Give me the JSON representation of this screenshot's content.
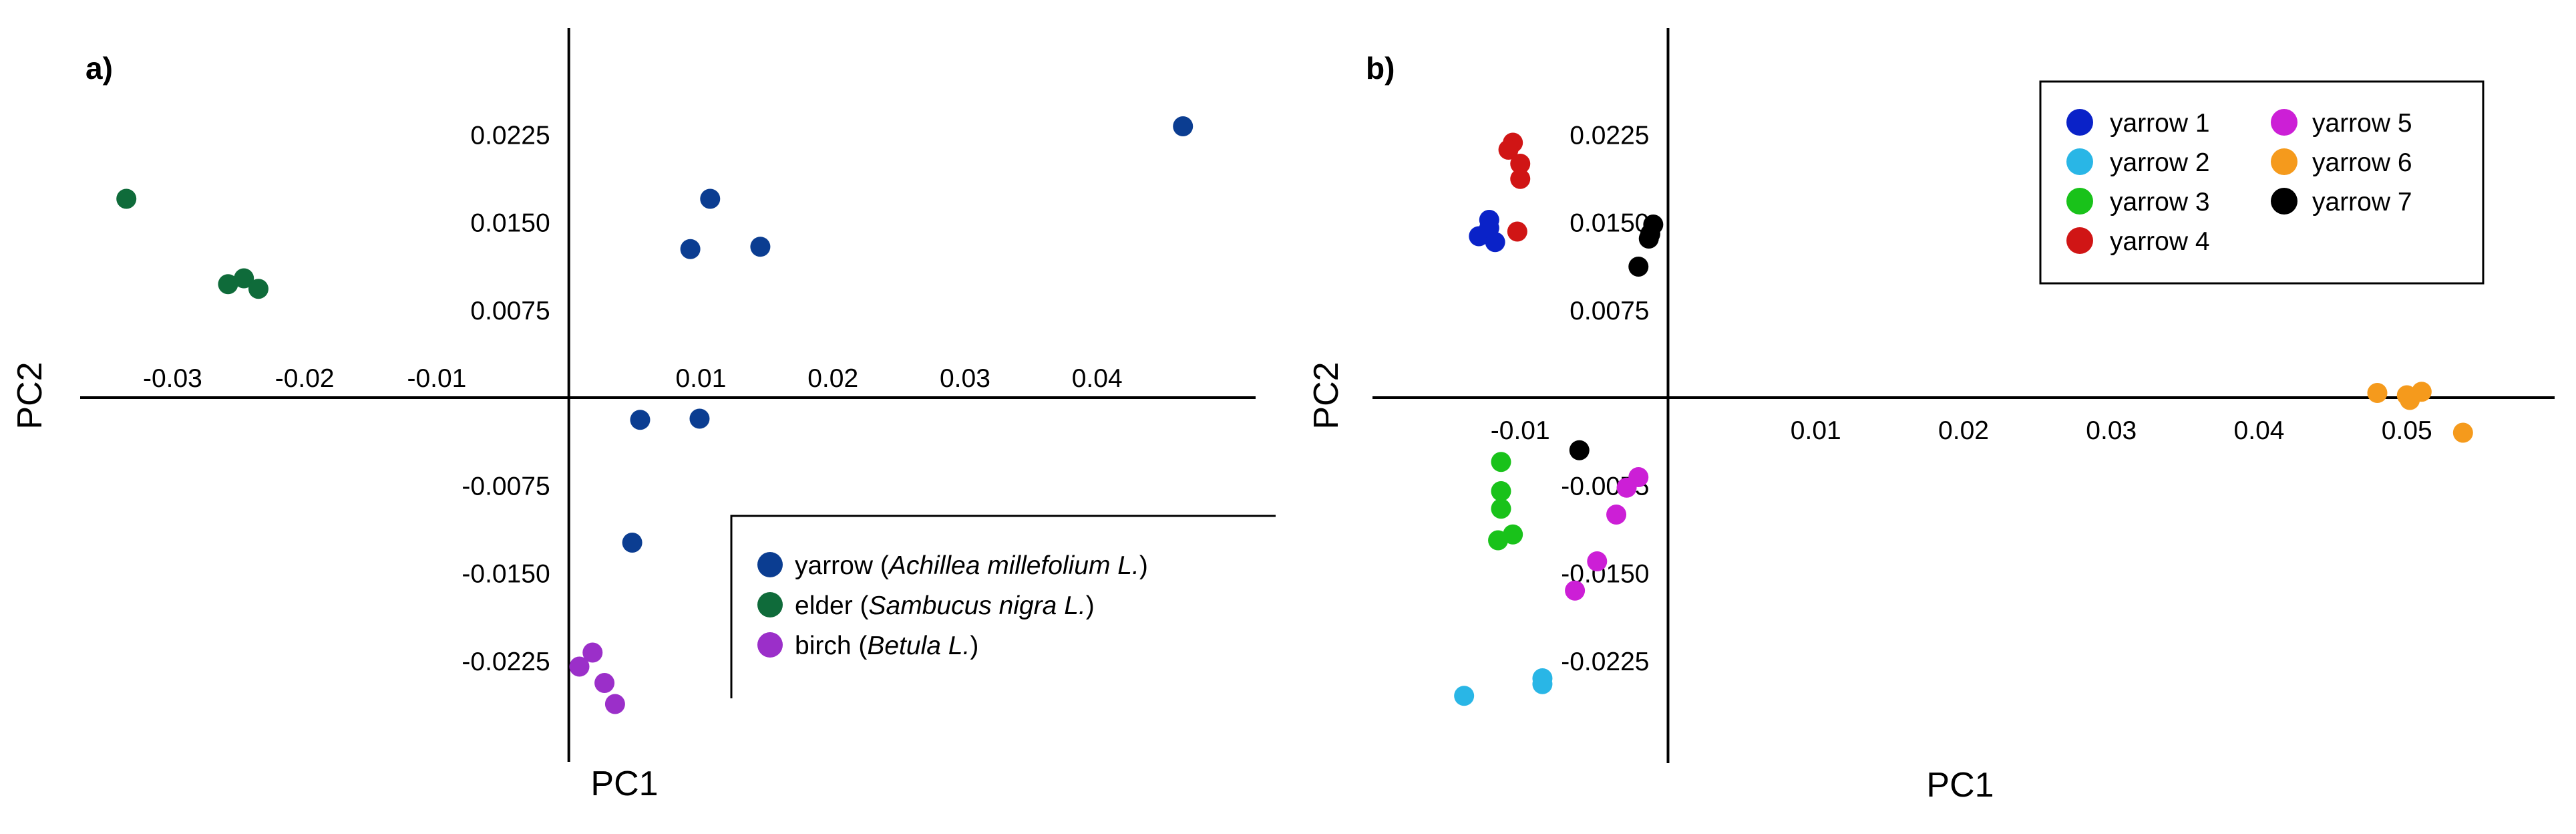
{
  "colors": {
    "yarrow": "#0b3d91",
    "elder": "#0f6b3a",
    "birch": "#9b2fc9",
    "yarrow 1": "#0a22c8",
    "yarrow 2": "#29b6e6",
    "yarrow 3": "#19c21a",
    "yarrow 4": "#d01515",
    "yarrow 5": "#cc1fd6",
    "yarrow 6": "#f59a1c",
    "yarrow 7": "#000000"
  },
  "chart_data": [
    {
      "type": "scatter",
      "panel_label": "a)",
      "xlabel": "PC1",
      "ylabel": "PC2",
      "xlim": [
        -0.037,
        0.052
      ],
      "ylim": [
        -0.03,
        0.03
      ],
      "x_ticks": [
        "-0.03",
        "-0.02",
        "-0.01",
        "0.01",
        "0.02",
        "0.03",
        "0.04"
      ],
      "x_tick_values": [
        -0.03,
        -0.02,
        -0.01,
        0.01,
        0.02,
        0.03,
        0.04
      ],
      "y_ticks": [
        "0.0225",
        "0.0150",
        "0.0075",
        "-0.0075",
        "-0.0150",
        "-0.0225"
      ],
      "y_tick_values": [
        0.0225,
        0.015,
        0.0075,
        -0.0075,
        -0.015,
        -0.0225
      ],
      "legend_position": "bottom-right",
      "series": [
        {
          "name": "yarrow",
          "legend_parts": [
            "yarrow (",
            "Achillea millefolium L.",
            ")"
          ],
          "color_key": "yarrow",
          "points": [
            [
              0.0465,
              0.0232
            ],
            [
              0.0107,
              0.017
            ],
            [
              0.0145,
              0.0129
            ],
            [
              0.0092,
              0.0127
            ],
            [
              0.0054,
              -0.0019
            ],
            [
              0.0099,
              -0.0018
            ],
            [
              0.0048,
              -0.0124
            ]
          ]
        },
        {
          "name": "elder",
          "legend_parts": [
            "elder (",
            "Sambucus nigra L.",
            ")"
          ],
          "color_key": "elder",
          "points": [
            [
              -0.0335,
              0.017
            ],
            [
              -0.0258,
              0.0097
            ],
            [
              -0.0246,
              0.0102
            ],
            [
              -0.0235,
              0.0093
            ]
          ]
        },
        {
          "name": "birch",
          "legend_parts": [
            "birch (",
            "Betula L.",
            ")"
          ],
          "color_key": "birch",
          "points": [
            [
              0.0018,
              -0.0218
            ],
            [
              0.0008,
              -0.023
            ],
            [
              0.0027,
              -0.0244
            ],
            [
              0.0035,
              -0.0262
            ]
          ]
        }
      ]
    },
    {
      "type": "scatter",
      "panel_label": "b)",
      "xlabel": "PC1",
      "ylabel": "PC2",
      "xlim": [
        -0.02,
        0.06
      ],
      "ylim": [
        -0.03,
        0.03
      ],
      "x_ticks": [
        "-0.01",
        "0.01",
        "0.02",
        "0.03",
        "0.04",
        "0.05"
      ],
      "x_tick_values": [
        -0.01,
        0.01,
        0.02,
        0.03,
        0.04,
        0.05
      ],
      "y_ticks": [
        "0.0225",
        "0.0150",
        "0.0075",
        "-0.0075",
        "-0.0150",
        "-0.0225"
      ],
      "y_tick_values": [
        0.0225,
        0.015,
        0.0075,
        -0.0075,
        -0.015,
        -0.0225
      ],
      "legend_position": "top-right",
      "series": [
        {
          "name": "yarrow 1",
          "color_key": "yarrow 1",
          "points": [
            [
              -0.0121,
              0.0152
            ],
            [
              -0.0128,
              0.0138
            ],
            [
              -0.0117,
              0.0133
            ],
            [
              -0.0121,
              0.0145
            ]
          ]
        },
        {
          "name": "yarrow 2",
          "color_key": "yarrow 2",
          "points": [
            [
              -0.0138,
              -0.0255
            ],
            [
              -0.0085,
              -0.024
            ],
            [
              -0.0085,
              -0.0245
            ]
          ]
        },
        {
          "name": "yarrow 3",
          "color_key": "yarrow 3",
          "points": [
            [
              -0.0113,
              -0.0055
            ],
            [
              -0.0113,
              -0.008
            ],
            [
              -0.0113,
              -0.0095
            ],
            [
              -0.0105,
              -0.0117
            ],
            [
              -0.0115,
              -0.0122
            ]
          ]
        },
        {
          "name": "yarrow 4",
          "color_key": "yarrow 4",
          "points": [
            [
              -0.0105,
              0.0218
            ],
            [
              -0.0108,
              0.0212
            ],
            [
              -0.01,
              0.02
            ],
            [
              -0.01,
              0.0187
            ],
            [
              -0.0102,
              0.0142
            ]
          ]
        },
        {
          "name": "yarrow 5",
          "color_key": "yarrow 5",
          "points": [
            [
              -0.002,
              -0.0068
            ],
            [
              -0.0028,
              -0.0077
            ],
            [
              -0.0035,
              -0.01
            ],
            [
              -0.0048,
              -0.014
            ],
            [
              -0.0063,
              -0.0165
            ]
          ]
        },
        {
          "name": "yarrow 6",
          "color_key": "yarrow 6",
          "points": [
            [
              0.048,
              0.0004
            ],
            [
              0.05,
              0.0002
            ],
            [
              0.0502,
              -0.0002
            ],
            [
              0.051,
              0.0005
            ],
            [
              0.0538,
              -0.003
            ]
          ]
        },
        {
          "name": "yarrow 7",
          "color_key": "yarrow 7",
          "points": [
            [
              -0.001,
              0.0148
            ],
            [
              -0.0012,
              0.014
            ],
            [
              -0.0013,
              0.0136
            ],
            [
              -0.002,
              0.0112
            ],
            [
              -0.006,
              -0.0045
            ]
          ]
        }
      ]
    }
  ]
}
